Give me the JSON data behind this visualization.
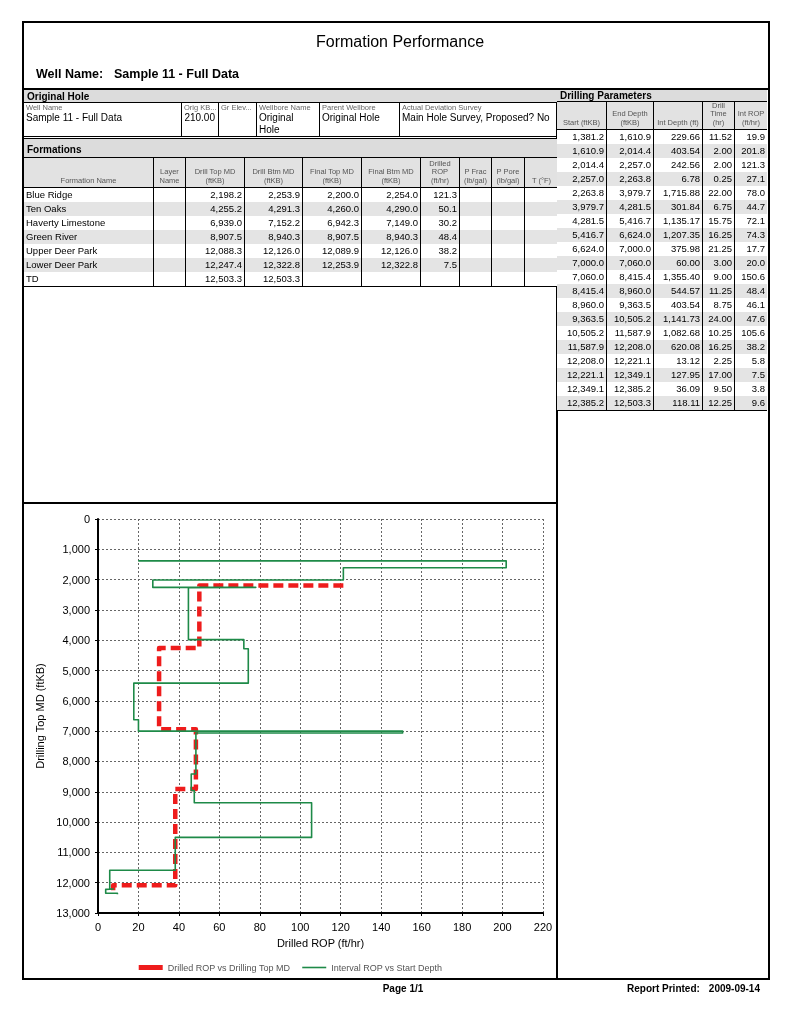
{
  "chart_data": [
    {
      "type": "other",
      "title": "Formation Performance",
      "annotations": [
        "Well Name:",
        "Sample 11 - Full Data",
        "Page 1/1",
        "Report Printed:",
        "2009-09-14"
      ]
    },
    {
      "type": "other",
      "title": "Original Hole",
      "categories": [
        "Well Name",
        "Orig KB...",
        "Gr Elev...",
        "Wellbore Name",
        "Parent Wellbore",
        "Actual Deviation Survey"
      ],
      "cell_labels": [
        [
          "Sample 11 - Full Data",
          "210.00",
          null,
          "Original Hole",
          "Original Hole",
          "Main Hole Survey, Proposed? No"
        ]
      ]
    },
    {
      "type": "other",
      "title": "Formations",
      "categories": [
        "Formation Name",
        "Layer Name",
        "Drill Top MD (ftKB)",
        "Drill Btm MD (ftKB)",
        "Final Top MD (ftKB)",
        "Final Btm MD (ftKB)",
        "Drilled ROP (ft/hr)",
        "P Frac (lb/gal)",
        "P Pore (lb/gal)",
        "T (°F)"
      ],
      "cell_labels": [
        [
          "Blue Ridge",
          null,
          "2,198.2",
          "2,253.9",
          "2,200.0",
          "2,254.0",
          "121.3",
          null,
          null,
          null
        ],
        [
          "Ten Oaks",
          null,
          "4,255.2",
          "4,291.3",
          "4,260.0",
          "4,290.0",
          "50.1",
          null,
          null,
          null
        ],
        [
          "Haverty Limestone",
          null,
          "6,939.0",
          "7,152.2",
          "6,942.3",
          "7,149.0",
          "30.2",
          null,
          null,
          null
        ],
        [
          "Green River",
          null,
          "8,907.5",
          "8,940.3",
          "8,907.5",
          "8,940.3",
          "48.4",
          null,
          null,
          null
        ],
        [
          "Upper Deer Park",
          null,
          "12,088.3",
          "12,126.0",
          "12,089.9",
          "12,126.0",
          "38.2",
          null,
          null,
          null
        ],
        [
          "Lower Deer Park",
          null,
          "12,247.4",
          "12,322.8",
          "12,253.9",
          "12,322.8",
          "7.5",
          null,
          null,
          null
        ],
        [
          "TD",
          null,
          "12,503.3",
          "12,503.3",
          null,
          null,
          null,
          null,
          null,
          null
        ]
      ]
    },
    {
      "type": "other",
      "title": "Drilling Parameters",
      "categories": [
        "Start (ftKB)",
        "End Depth (ftKB)",
        "Int Depth (ft)",
        "Drill Time (hr)",
        "Int ROP (ft/hr)"
      ],
      "cell_labels": [
        [
          "1,381.2",
          "1,610.9",
          "229.66",
          "11.52",
          "19.9"
        ],
        [
          "1,610.9",
          "2,014.4",
          "403.54",
          "2.00",
          "201.8"
        ],
        [
          "2,014.4",
          "2,257.0",
          "242.56",
          "2.00",
          "121.3"
        ],
        [
          "2,257.0",
          "2,263.8",
          "6.78",
          "0.25",
          "27.1"
        ],
        [
          "2,263.8",
          "3,979.7",
          "1,715.88",
          "22.00",
          "78.0"
        ],
        [
          "3,979.7",
          "4,281.5",
          "301.84",
          "6.75",
          "44.7"
        ],
        [
          "4,281.5",
          "5,416.7",
          "1,135.17",
          "15.75",
          "72.1"
        ],
        [
          "5,416.7",
          "6,624.0",
          "1,207.35",
          "16.25",
          "74.3"
        ],
        [
          "6,624.0",
          "7,000.0",
          "375.98",
          "21.25",
          "17.7"
        ],
        [
          "7,000.0",
          "7,060.0",
          "60.00",
          "3.00",
          "20.0"
        ],
        [
          "7,060.0",
          "8,415.4",
          "1,355.40",
          "9.00",
          "150.6"
        ],
        [
          "8,415.4",
          "8,960.0",
          "544.57",
          "11.25",
          "48.4"
        ],
        [
          "8,960.0",
          "9,363.5",
          "403.54",
          "8.75",
          "46.1"
        ],
        [
          "9,363.5",
          "10,505.2",
          "1,141.73",
          "24.00",
          "47.6"
        ],
        [
          "10,505.2",
          "11,587.9",
          "1,082.68",
          "10.25",
          "105.6"
        ],
        [
          "11,587.9",
          "12,208.0",
          "620.08",
          "16.25",
          "38.2"
        ],
        [
          "12,208.0",
          "12,221.1",
          "13.12",
          "2.25",
          "5.8"
        ],
        [
          "12,221.1",
          "12,349.1",
          "127.95",
          "17.00",
          "7.5"
        ],
        [
          "12,349.1",
          "12,385.2",
          "36.09",
          "9.50",
          "3.8"
        ],
        [
          "12,385.2",
          "12,503.3",
          "118.11",
          "12.25",
          "9.6"
        ]
      ]
    },
    {
      "type": "step",
      "xlabel": "Drilled ROP (ft/hr)",
      "ylabel": "Drilling Top MD (ftKB)",
      "xlim": [
        0,
        220
      ],
      "xticks": [
        0,
        20,
        40,
        60,
        80,
        100,
        120,
        140,
        160,
        180,
        200,
        220
      ],
      "ylim": [
        13000,
        0
      ],
      "yticks": [
        0,
        {
          "value": 1000,
          "label": "1,000"
        },
        {
          "value": 2000,
          "label": "2,000"
        },
        {
          "value": 3000,
          "label": "3,000"
        },
        {
          "value": 4000,
          "label": "4,000"
        },
        {
          "value": 5000,
          "label": "5,000"
        },
        {
          "value": 6000,
          "label": "6,000"
        },
        {
          "value": 7000,
          "label": "7,000"
        },
        {
          "value": 8000,
          "label": "8,000"
        },
        {
          "value": 9000,
          "label": "9,000"
        },
        {
          "value": 10000,
          "label": "10,000"
        },
        {
          "value": 11000,
          "label": "11,000"
        },
        {
          "value": 12000,
          "label": "12,000"
        },
        {
          "value": 13000,
          "label": "13,000"
        }
      ],
      "grid": true,
      "legend": "bottom",
      "marker": "none",
      "series": [
        {
          "name": "Drilled ROP vs Drilling Top MD",
          "color": "#ee1c1c",
          "line_style": "dashed",
          "x": [
            121.3,
            50.1,
            30.2,
            48.4,
            38.2,
            7.5
          ],
          "values": [
            2198.2,
            4255.2,
            6939.0,
            8907.5,
            12088.3,
            12247.4
          ]
        },
        {
          "name": "Interval ROP vs Start Depth",
          "color": "#1e8a48",
          "line_style": "solid",
          "x": [
            19.9,
            201.8,
            121.3,
            27.1,
            78.0,
            44.7,
            72.1,
            74.3,
            17.7,
            20.0,
            150.6,
            48.4,
            46.1,
            47.6,
            105.6,
            38.2,
            5.8,
            7.5,
            3.8,
            9.6
          ],
          "values": [
            1381.2,
            1610.9,
            2014.4,
            2257.0,
            2263.8,
            3979.7,
            4281.5,
            5416.7,
            6624.0,
            7000.0,
            7060.0,
            8415.4,
            8960.0,
            9363.5,
            10505.2,
            11587.9,
            12208.0,
            12221.1,
            12349.1,
            12385.2
          ]
        }
      ]
    }
  ]
}
